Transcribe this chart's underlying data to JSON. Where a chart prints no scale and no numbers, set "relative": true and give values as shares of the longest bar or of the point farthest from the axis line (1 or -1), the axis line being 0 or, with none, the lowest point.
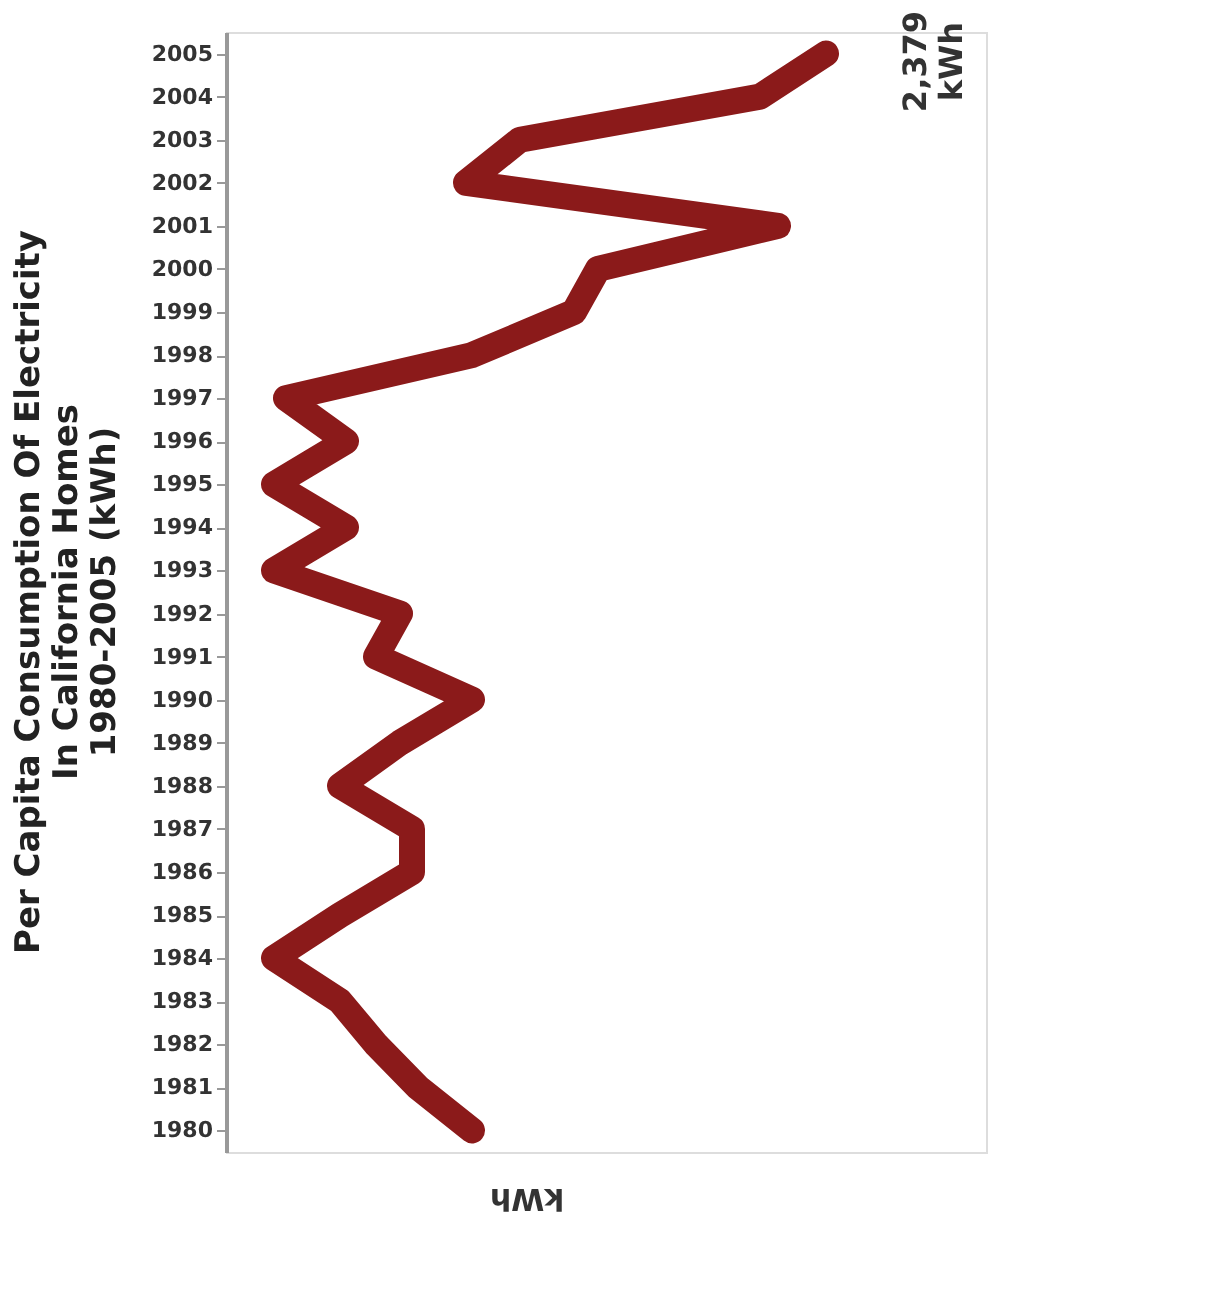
{
  "chart_data": {
    "type": "line",
    "orientation": "horizontal",
    "relative": true,
    "title": [
      "Per Capita Consumption Of Electricity",
      "In California Homes",
      "1980-2005 (kWh)"
    ],
    "xlabel": "kWh",
    "annotations": [
      "2,379\nkWh"
    ],
    "categories": [
      "2005",
      "2004",
      "2003",
      "2002",
      "2001",
      "2000",
      "1999",
      "1998",
      "1997",
      "1996",
      "1995",
      "1994",
      "1993",
      "1992",
      "1991",
      "1990",
      "1989",
      "1988",
      "1987",
      "1986",
      "1985",
      "1984",
      "1983",
      "1982",
      "1981",
      "1980"
    ],
    "series": [
      {
        "color": "#8b1a1a",
        "values": [
          1,
          0.89,
          0.49,
          0.4,
          0.92,
          0.62,
          0.58,
          0.41,
          0.1,
          0.2,
          0.08,
          0.2,
          0.08,
          0.29,
          0.25,
          0.41,
          0.29,
          0.19,
          0.31,
          0.31,
          0.19,
          0.08,
          0.19,
          0.25,
          0.32,
          0.41
        ]
      }
    ],
    "tick_labels": "y",
    "grid": false,
    "legend": false
  }
}
